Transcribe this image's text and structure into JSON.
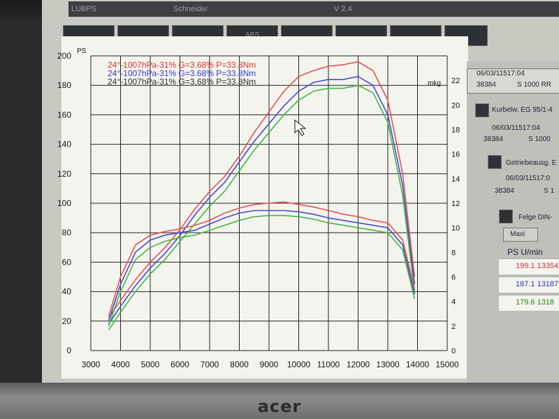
{
  "monitor": {
    "brand": "acer"
  },
  "titlebar": {
    "left": "LUBPS",
    "mid": "Schneider",
    "right": "V 2.4"
  },
  "toolbar": {
    "buttons": [
      "",
      "",
      "",
      "ABS",
      "",
      "",
      "",
      ""
    ]
  },
  "chart_data": {
    "type": "line",
    "x_unit_label": "U/min",
    "y_left_unit": "PS",
    "y_right_unit": "mkg",
    "x_ticks": [
      3000,
      4000,
      5000,
      6000,
      7000,
      8000,
      9000,
      10000,
      11000,
      12000,
      13000,
      14000,
      15000
    ],
    "y_left_ticks": [
      0,
      20,
      40,
      60,
      80,
      100,
      120,
      140,
      160,
      180,
      200
    ],
    "y_right_ticks": [
      0,
      2,
      4,
      6,
      8,
      10,
      12,
      14,
      16,
      18,
      20,
      22
    ],
    "xlim": [
      3000,
      15000
    ],
    "ylim_left": [
      0,
      200
    ],
    "ylim_right": [
      0,
      24
    ],
    "grid": true,
    "legend": [
      {
        "text": "24°-1007hPa-31% G=3.68% P=33.8Nm",
        "color": "#e03030"
      },
      {
        "text": "24°-1007hPa-31% G=3.68% P=33.8Nm",
        "color": "#3a3ad0"
      },
      {
        "text": "24°-1007hPa-31% G=3.68% P=33.8Nm",
        "color": "#2c2c2c"
      }
    ],
    "series": [
      {
        "color": "#e85050",
        "kind": "power",
        "x": [
          3600,
          4000,
          4500,
          5000,
          5500,
          6000,
          6500,
          7000,
          7500,
          8000,
          8500,
          9000,
          9500,
          10000,
          10500,
          11000,
          11500,
          12000,
          12500,
          13000,
          13500,
          13900
        ],
        "y": [
          22,
          34,
          48,
          60,
          70,
          82,
          96,
          108,
          118,
          132,
          148,
          162,
          176,
          186,
          190,
          193,
          194,
          196,
          190,
          170,
          120,
          50
        ]
      },
      {
        "color": "#4848d0",
        "kind": "power",
        "x": [
          3600,
          4000,
          4500,
          5000,
          5500,
          6000,
          6500,
          7000,
          7500,
          8000,
          8500,
          9000,
          9500,
          10000,
          10500,
          11000,
          11500,
          12000,
          12500,
          13000,
          13500,
          13900
        ],
        "y": [
          18,
          30,
          44,
          56,
          66,
          78,
          92,
          104,
          114,
          128,
          142,
          154,
          166,
          176,
          182,
          184,
          184,
          186,
          180,
          160,
          112,
          45
        ]
      },
      {
        "color": "#40b840",
        "kind": "power",
        "x": [
          3600,
          4000,
          4500,
          5000,
          5500,
          6000,
          6500,
          7000,
          7500,
          8000,
          8500,
          9000,
          9500,
          10000,
          10500,
          11000,
          11500,
          12000,
          12500,
          13000,
          13500,
          13900
        ],
        "y": [
          14,
          26,
          40,
          52,
          62,
          74,
          86,
          98,
          108,
          122,
          136,
          148,
          160,
          170,
          176,
          178,
          178,
          180,
          175,
          155,
          105,
          40
        ]
      },
      {
        "color": "#e85050",
        "kind": "torque",
        "x": [
          3600,
          4000,
          4500,
          5000,
          5500,
          6000,
          6500,
          7000,
          7500,
          8000,
          8500,
          9000,
          9500,
          10000,
          10500,
          11000,
          11500,
          12000,
          12500,
          13000,
          13500,
          13900
        ],
        "y": [
          2.8,
          6,
          8.6,
          9.4,
          9.7,
          9.9,
          10.2,
          10.6,
          11.2,
          11.6,
          11.9,
          12.0,
          12.1,
          11.9,
          11.7,
          11.4,
          11.1,
          10.9,
          10.6,
          10.4,
          9.0,
          5.0
        ]
      },
      {
        "color": "#4848d0",
        "kind": "torque",
        "x": [
          3600,
          4000,
          4500,
          5000,
          5500,
          6000,
          6500,
          7000,
          7500,
          8000,
          8500,
          9000,
          9500,
          10000,
          10500,
          11000,
          11500,
          12000,
          12500,
          13000,
          13500,
          13900
        ],
        "y": [
          2.4,
          5.4,
          8.0,
          9.0,
          9.4,
          9.6,
          9.8,
          10.3,
          10.8,
          11.2,
          11.4,
          11.4,
          11.4,
          11.3,
          11.1,
          10.8,
          10.6,
          10.4,
          10.2,
          10.0,
          8.6,
          4.6
        ]
      },
      {
        "color": "#40b840",
        "kind": "torque",
        "x": [
          3600,
          4000,
          4500,
          5000,
          5500,
          6000,
          6500,
          7000,
          7500,
          8000,
          8500,
          9000,
          9500,
          10000,
          10500,
          11000,
          11500,
          12000,
          12500,
          13000,
          13500,
          13900
        ],
        "y": [
          2.0,
          4.8,
          7.4,
          8.4,
          8.9,
          9.2,
          9.4,
          9.8,
          10.2,
          10.6,
          10.9,
          11.0,
          11.0,
          10.9,
          10.7,
          10.4,
          10.2,
          10.0,
          9.8,
          9.6,
          8.2,
          4.2
        ]
      }
    ]
  },
  "panel": {
    "rows": [
      {
        "text": "06/03/11517:04",
        "color": "#c03030"
      },
      {
        "text": "38384",
        "color": "#c03030"
      },
      {
        "text": "S 1000 RR",
        "color": "#c03030"
      },
      {
        "text": "Kurbelw. EG 95/1-4",
        "color": "#223"
      },
      {
        "text": "06/03/11517:04",
        "color": "#223"
      },
      {
        "text": "38384",
        "color": "#223"
      },
      {
        "text": "S 1000",
        "color": "#223"
      },
      {
        "text": "Getriebeausg. E",
        "color": "#223"
      },
      {
        "text": "06/03/11517:0",
        "color": "#223"
      },
      {
        "text": "38384",
        "color": "#223"
      },
      {
        "text": "S 1",
        "color": "#223"
      },
      {
        "text": "Felge DIN-",
        "color": "#223"
      },
      {
        "text": "Maxi",
        "color": "#223"
      }
    ],
    "table_header": "PS    U/min",
    "table": [
      {
        "text": "199.1 13354",
        "color": "#d03030"
      },
      {
        "text": "187.1 13187",
        "color": "#3030c0"
      },
      {
        "text": "179.6 1318",
        "color": "#208020"
      }
    ]
  }
}
